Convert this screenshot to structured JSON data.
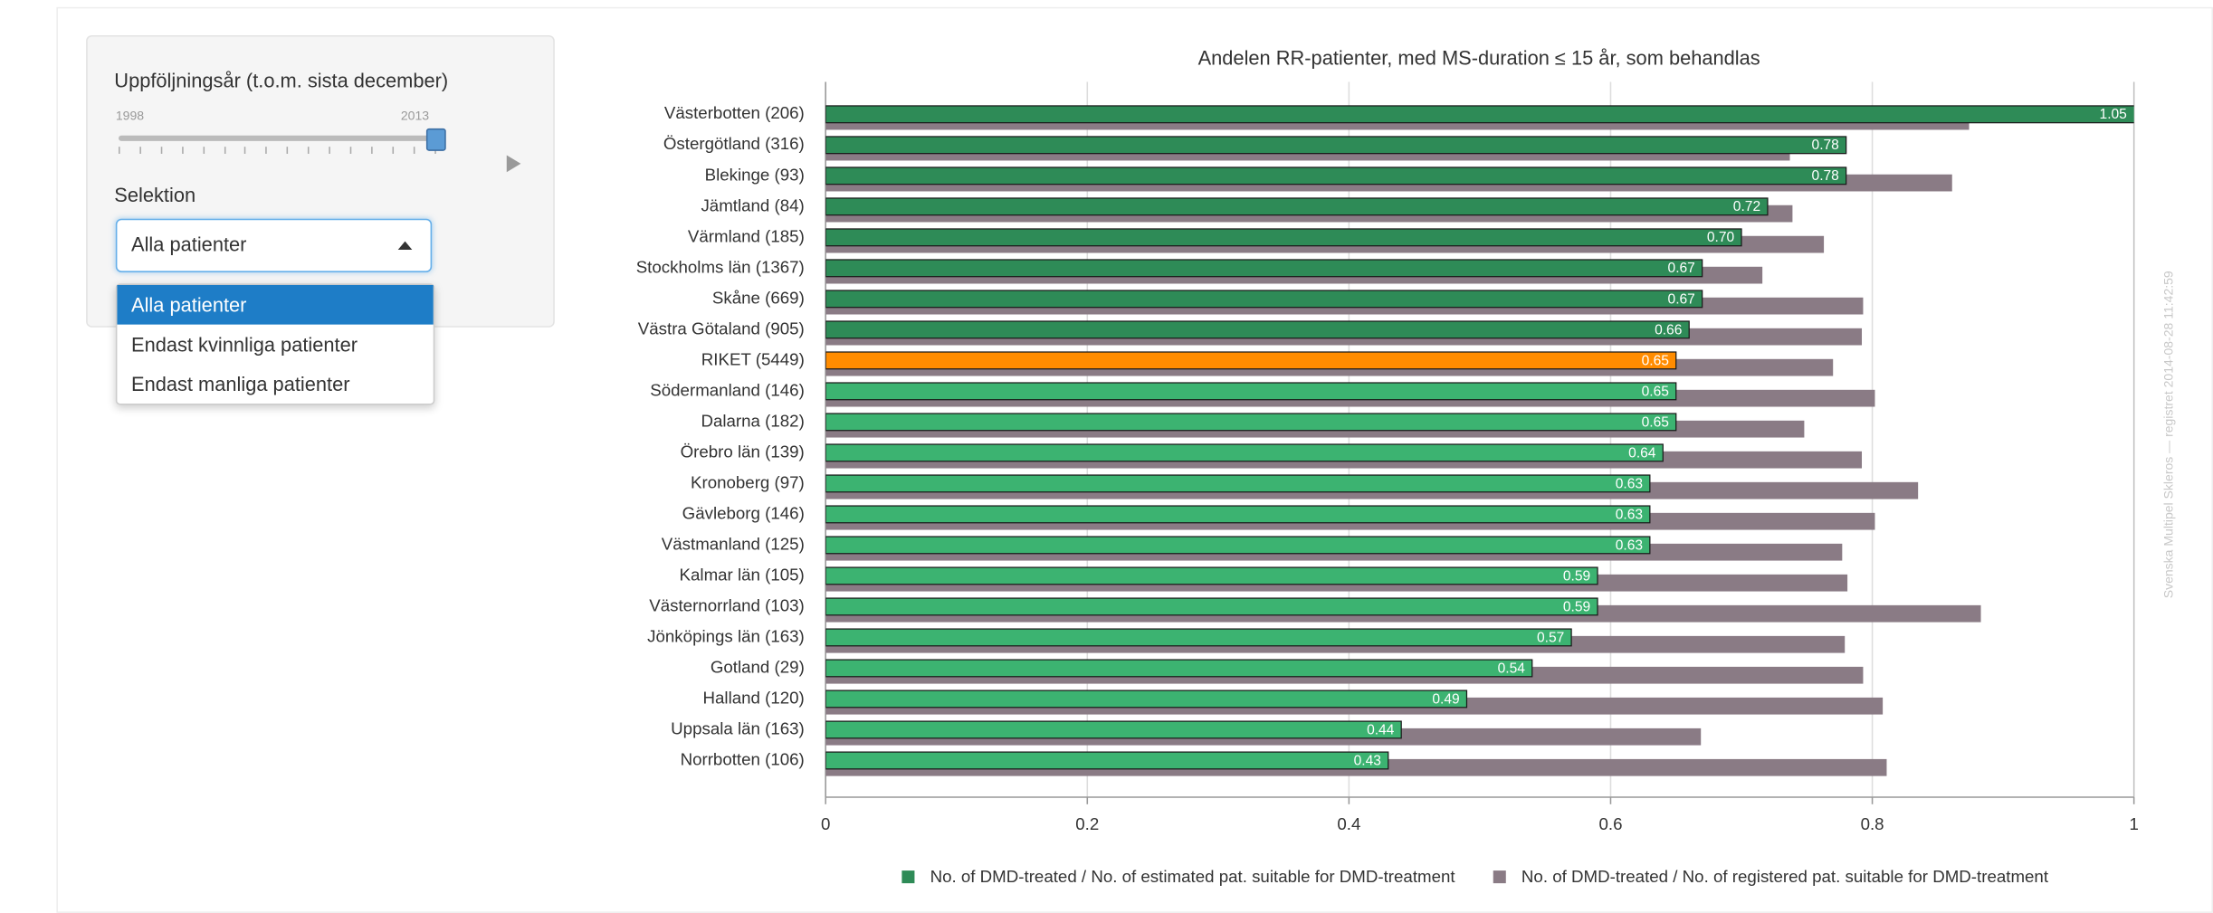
{
  "sidebar": {
    "slider_label": "Uppföljningsår (t.o.m. sista december)",
    "slider_min": 1998,
    "slider_max": 2013,
    "select_label": "Selektion",
    "select_value": "Alla patienter",
    "options": [
      "Alla patienter",
      "Endast kvinnliga patienter",
      "Endast manliga patienter"
    ]
  },
  "chart_data": {
    "type": "bar",
    "orientation": "horizontal",
    "title": "Andelen RR-patienter, med MS-duration ≤ 15 år, som behandlas",
    "watermark": "Svenska Multipel Skleros — registret 2014-08-28 11:42:59",
    "categories": [
      "Västerbotten (206)",
      "Östergötland (316)",
      "Blekinge (93)",
      "Jämtland (84)",
      "Värmland (185)",
      "Stockholms län (1367)",
      "Skåne (669)",
      "Västra Götaland (905)",
      "RIKET (5449)",
      "Södermanland (146)",
      "Dalarna (182)",
      "Örebro län (139)",
      "Kronoberg (97)",
      "Gävleborg (146)",
      "Västmanland (125)",
      "Kalmar län (105)",
      "Västernorrland (103)",
      "Jönköpings län (163)",
      "Gotland (29)",
      "Halland (120)",
      "Uppsala län (163)",
      "Norrbotten (106)"
    ],
    "series": [
      {
        "name": "No. of DMD-treated / No. of estimated pat. suitable for DMD-treatment",
        "color": "#2e8b57",
        "colors": [
          "#2e8b57",
          "#2e8b57",
          "#2e8b57",
          "#2e8b57",
          "#2e8b57",
          "#2e8b57",
          "#2e8b57",
          "#2e8b57",
          "#ff8c00",
          "#3cb371",
          "#3cb371",
          "#3cb371",
          "#3cb371",
          "#3cb371",
          "#3cb371",
          "#3cb371",
          "#3cb371",
          "#3cb371",
          "#3cb371",
          "#3cb371",
          "#3cb371",
          "#3cb371"
        ],
        "values": [
          1.05,
          0.78,
          0.78,
          0.72,
          0.7,
          0.67,
          0.67,
          0.66,
          0.65,
          0.65,
          0.65,
          0.64,
          0.63,
          0.63,
          0.63,
          0.59,
          0.59,
          0.57,
          0.54,
          0.49,
          0.44,
          0.43
        ],
        "value_labels": [
          "1.05",
          "0.78",
          "0.78",
          "0.72",
          "0.70",
          "0.67",
          "0.67",
          "0.66",
          "0.65",
          "0.65",
          "0.65",
          "0.64",
          "0.63",
          "0.63",
          "0.63",
          "0.59",
          "0.59",
          "0.57",
          "0.54",
          "0.49",
          "0.44",
          "0.43"
        ]
      },
      {
        "name": "No. of DMD-treated / No. of registered pat. suitable for DMD-treatment",
        "color": "#8a7b85",
        "values": [
          0.874,
          0.737,
          0.861,
          0.739,
          0.763,
          0.716,
          0.793,
          0.792,
          0.77,
          0.802,
          0.748,
          0.792,
          0.835,
          0.802,
          0.777,
          0.781,
          0.883,
          0.779,
          0.793,
          0.808,
          0.669,
          0.811
        ]
      }
    ],
    "xlim": [
      0,
      1
    ],
    "xticks": [
      0,
      0.2,
      0.4,
      0.6,
      0.8,
      1
    ],
    "grid": true
  }
}
